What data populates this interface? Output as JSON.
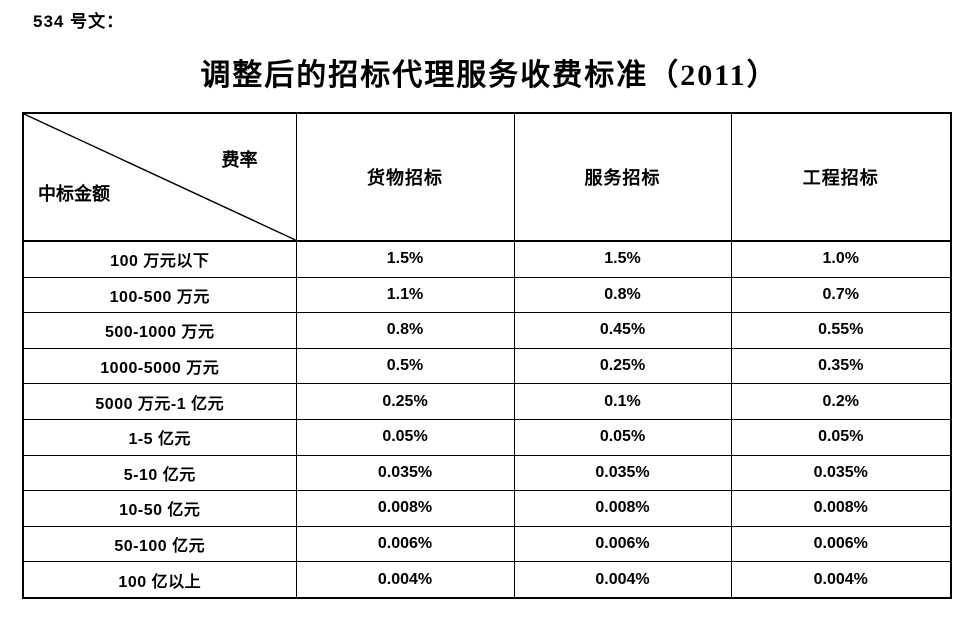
{
  "doc_label": "534 号文：",
  "title": "调整后的招标代理服务收费标准（2011）",
  "table": {
    "corner": {
      "top": "费率",
      "bottom": "中标金额"
    },
    "columns": [
      "货物招标",
      "服务招标",
      "工程招标"
    ],
    "rows": [
      {
        "label": "100 万元以下",
        "values": [
          "1.5%",
          "1.5%",
          "1.0%"
        ]
      },
      {
        "label": "100-500 万元",
        "values": [
          "1.1%",
          "0.8%",
          "0.7%"
        ]
      },
      {
        "label": "500-1000 万元",
        "values": [
          "0.8%",
          "0.45%",
          "0.55%"
        ]
      },
      {
        "label": "1000-5000 万元",
        "values": [
          "0.5%",
          "0.25%",
          "0.35%"
        ]
      },
      {
        "label": "5000 万元-1 亿元",
        "values": [
          "0.25%",
          "0.1%",
          "0.2%"
        ]
      },
      {
        "label": "1-5 亿元",
        "values": [
          "0.05%",
          "0.05%",
          "0.05%"
        ]
      },
      {
        "label": "5-10 亿元",
        "values": [
          "0.035%",
          "0.035%",
          "0.035%"
        ]
      },
      {
        "label": "10-50 亿元",
        "values": [
          "0.008%",
          "0.008%",
          "0.008%"
        ]
      },
      {
        "label": "50-100 亿元",
        "values": [
          "0.006%",
          "0.006%",
          "0.006%"
        ]
      },
      {
        "label": "100 亿以上",
        "values": [
          "0.004%",
          "0.004%",
          "0.004%"
        ]
      }
    ]
  },
  "colors": {
    "text": "#000000",
    "border": "#000000",
    "background": "#ffffff"
  }
}
